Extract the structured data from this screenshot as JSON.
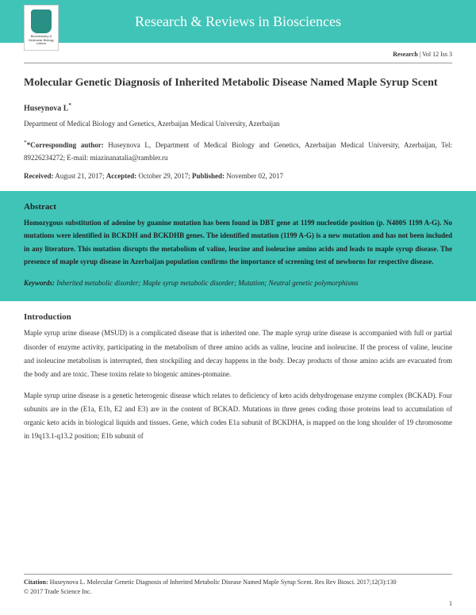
{
  "header": {
    "journal_name": "Research & Reviews in Biosciences",
    "logo_label": "Biochemistry & Molecular Biology Letters",
    "colors": {
      "teal": "#40c4b8",
      "white": "#ffffff"
    }
  },
  "meta": {
    "section": "Research",
    "issue": " | Vol 12 Iss 3"
  },
  "article": {
    "title": "Molecular Genetic Diagnosis of Inherited Metabolic Disease Named Maple Syrup Scent",
    "author": "Huseynova L",
    "author_marker": "*",
    "affiliation": "Department of Medical Biology and Genetics, Azerbaijan Medical University, Azerbaijan",
    "corresponding_label": "*Corresponding author:",
    "corresponding_text": " Huseynova L, Department of Medical Biology and Genetics, Azerbaijan Medical University, Azerbaijan, Tel: 89226234272; E-mail: miazinanatalia@rambler.ru",
    "dates": {
      "received_label": "Received:",
      "received": " August 21, 2017; ",
      "accepted_label": "Accepted:",
      "accepted": " October 29, 2017; ",
      "published_label": "Published:",
      "published": " November 02, 2017"
    }
  },
  "abstract": {
    "heading": "Abstract",
    "text": "Homozygous substitution of adenine by guanine mutation has been found in DBT gene at 1199 nucleotide position (p. N400S 1199 A-G). No mutations were identified in BCKDH and BCKDHB genes. The identified mutation (1199 A-G) is a new mutation and has not been included in any literature. This mutation disrupts the metabolism of valine, leucine and isoleucine amino acids and leads to maple syrup disease. The presence of maple syrup disease in Azerbaijan population confirms the importance of screening test of newborns for respective disease.",
    "keywords_label": "Keywords:",
    "keywords": " Inherited metabolic disorder; Maple syrup metabolic disorder; Mutation; Neutral genetic polymorphisms"
  },
  "introduction": {
    "heading": "Introduction",
    "p1": "Maple syrup urine disease (MSUD) is a complicated disease that is inherited one. The maple syrup urine disease is accompanied with full or partial disorder of enzyme activity, participating in the metabolism of three amino acids as valine, leucine and isoleucine. If the process of valine, leucine and isoleucine metabolism is interrupted, then stockpiling and decay happens in the body. Decay products of those amino acids are evacuated from the body and are toxic. These toxins relate to biogenic amines-ptomaine.",
    "p2": "Maple syrup urine disease is a genetic heterogenic disease which relates to deficiency of keto acids dehydrogenase enzyme complex (BCKAD). Four subunits are in the (E1a, E1b, E2 and E3) are in the content of BCKAD. Mutations in three genes coding those proteins lead to accumulation of organic keto acids in biological liquids and tissues. Gene, which codes E1a subunit of BCKDHA, is mapped on the long shoulder of 19 chromosome in 19q13.1-q13.2 position; E1b subunit of"
  },
  "footer": {
    "citation_label": "Citation:",
    "citation": " Huseynova L. Molecular Genetic Diagnosis of Inherited Metabolic Disease Named Maple Syrup Scent. Res Rev Biosci. 2017;12(3):130",
    "copyright": "© 2017 Trade Science Inc.",
    "page": "1"
  }
}
